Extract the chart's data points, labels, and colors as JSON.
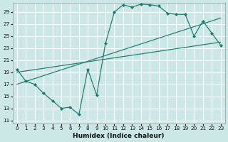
{
  "xlabel": "Humidex (Indice chaleur)",
  "bg_color": "#cce8e6",
  "grid_color": "#b0d4d2",
  "line_color": "#1a7a6e",
  "xlim": [
    -0.5,
    23.5
  ],
  "ylim": [
    10.5,
    30.5
  ],
  "xticks": [
    0,
    1,
    2,
    3,
    4,
    5,
    6,
    7,
    8,
    9,
    10,
    11,
    12,
    13,
    14,
    15,
    16,
    17,
    18,
    19,
    20,
    21,
    22,
    23
  ],
  "yticks": [
    11,
    13,
    15,
    17,
    19,
    21,
    23,
    25,
    27,
    29
  ],
  "main_x": [
    0,
    1,
    2,
    3,
    4,
    5,
    6,
    7,
    8,
    9,
    10,
    11,
    12,
    13,
    14,
    15,
    16,
    17,
    18,
    19,
    20,
    21,
    22,
    23
  ],
  "main_y": [
    19.5,
    17.5,
    17.0,
    15.5,
    14.3,
    13.0,
    13.2,
    12.0,
    19.5,
    15.2,
    23.8,
    29.0,
    30.2,
    29.8,
    30.3,
    30.2,
    30.0,
    28.8,
    28.6,
    28.6,
    25.0,
    27.5,
    25.5,
    23.5
  ],
  "trend1_x": [
    0,
    23
  ],
  "trend1_y": [
    19.0,
    24.0
  ],
  "trend2_x": [
    0,
    23
  ],
  "trend2_y": [
    17.0,
    28.0
  ]
}
